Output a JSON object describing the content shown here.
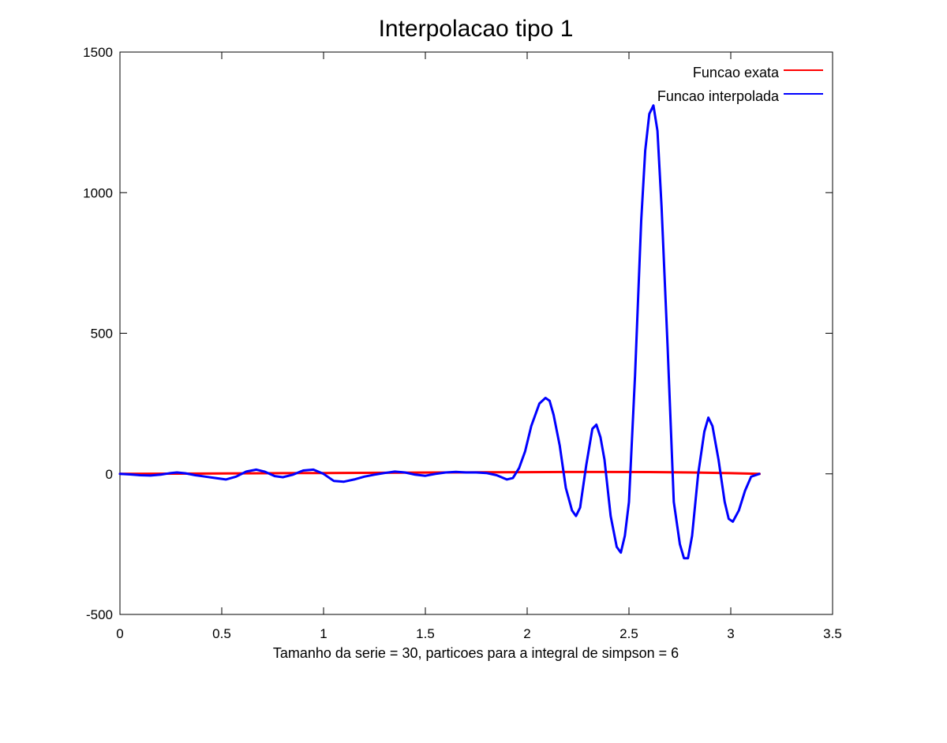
{
  "chart_data": {
    "type": "line",
    "title": "Interpolacao tipo 1",
    "xlabel": "Tamanho da serie = 30, particoes para a integral de simpson = 6",
    "ylabel": "",
    "xlim": [
      0,
      3.5
    ],
    "ylim": [
      -500,
      1500
    ],
    "xticks": [
      0,
      0.5,
      1,
      1.5,
      2,
      2.5,
      3,
      3.5
    ],
    "xtick_labels": [
      "0",
      "0.5",
      "1",
      "1.5",
      "2",
      "2.5",
      "3",
      "3.5"
    ],
    "yticks": [
      -500,
      0,
      500,
      1000,
      1500
    ],
    "ytick_labels": [
      "-500",
      "0",
      "500",
      "1000",
      "1500"
    ],
    "grid": false,
    "legend_position": "top-right",
    "series": [
      {
        "name": "Funcao exata",
        "color": "#ff0000",
        "x": [
          0,
          0.5,
          1.0,
          1.5,
          1.8,
          2.0,
          2.2,
          2.4,
          2.6,
          2.8,
          3.0,
          3.1416
        ],
        "y": [
          0,
          1.5,
          3.0,
          4.6,
          5.5,
          6.0,
          6.5,
          6.7,
          6.3,
          5.0,
          2.5,
          0
        ]
      },
      {
        "name": "Funcao interpolada",
        "color": "#0000ff",
        "x": [
          0,
          0.05,
          0.1,
          0.15,
          0.2,
          0.25,
          0.28,
          0.32,
          0.37,
          0.42,
          0.47,
          0.52,
          0.57,
          0.62,
          0.67,
          0.71,
          0.76,
          0.8,
          0.85,
          0.9,
          0.95,
          1.0,
          1.05,
          1.1,
          1.15,
          1.2,
          1.25,
          1.3,
          1.35,
          1.4,
          1.45,
          1.5,
          1.55,
          1.6,
          1.65,
          1.7,
          1.75,
          1.8,
          1.85,
          1.9,
          1.93,
          1.96,
          1.99,
          2.02,
          2.06,
          2.09,
          2.11,
          2.13,
          2.16,
          2.19,
          2.22,
          2.24,
          2.26,
          2.29,
          2.32,
          2.34,
          2.36,
          2.38,
          2.41,
          2.44,
          2.46,
          2.48,
          2.5,
          2.53,
          2.56,
          2.58,
          2.6,
          2.62,
          2.64,
          2.66,
          2.69,
          2.72,
          2.75,
          2.77,
          2.79,
          2.81,
          2.84,
          2.87,
          2.89,
          2.91,
          2.94,
          2.97,
          2.99,
          3.01,
          3.04,
          3.07,
          3.1,
          3.14
        ],
        "y": [
          0,
          -2,
          -5,
          -6,
          -3,
          3,
          5,
          2,
          -5,
          -10,
          -15,
          -20,
          -10,
          8,
          15,
          8,
          -8,
          -12,
          -3,
          12,
          15,
          0,
          -25,
          -28,
          -20,
          -10,
          -3,
          3,
          8,
          5,
          -3,
          -7,
          0,
          5,
          7,
          5,
          5,
          3,
          -5,
          -20,
          -15,
          20,
          80,
          170,
          250,
          270,
          260,
          210,
          100,
          -50,
          -130,
          -150,
          -120,
          30,
          160,
          175,
          130,
          50,
          -150,
          -260,
          -280,
          -220,
          -100,
          350,
          900,
          1150,
          1280,
          1310,
          1220,
          950,
          450,
          -100,
          -250,
          -300,
          -300,
          -220,
          0,
          150,
          200,
          170,
          50,
          -100,
          -160,
          -170,
          -130,
          -60,
          -10,
          0
        ]
      }
    ]
  }
}
